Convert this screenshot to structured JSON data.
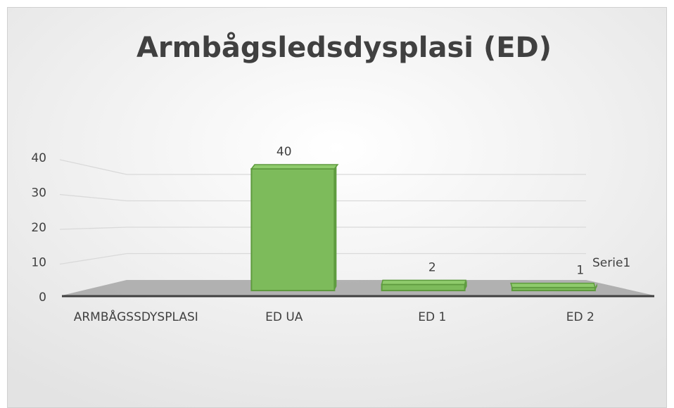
{
  "chart_data": {
    "type": "bar",
    "title": "Armbågsledsdysplasi (ED)",
    "categories": [
      "ARMBÅGSSDYSPLASI",
      "ED UA",
      "ED 1",
      "ED 2"
    ],
    "series": [
      {
        "name": "Serie1",
        "color": "#7dbb5b",
        "values": [
          null,
          40,
          2,
          1
        ]
      }
    ],
    "ylim": [
      0,
      40
    ],
    "yticks": [
      0,
      10,
      20,
      30,
      40
    ],
    "grid": true,
    "legend": "right",
    "data_labels": true
  }
}
